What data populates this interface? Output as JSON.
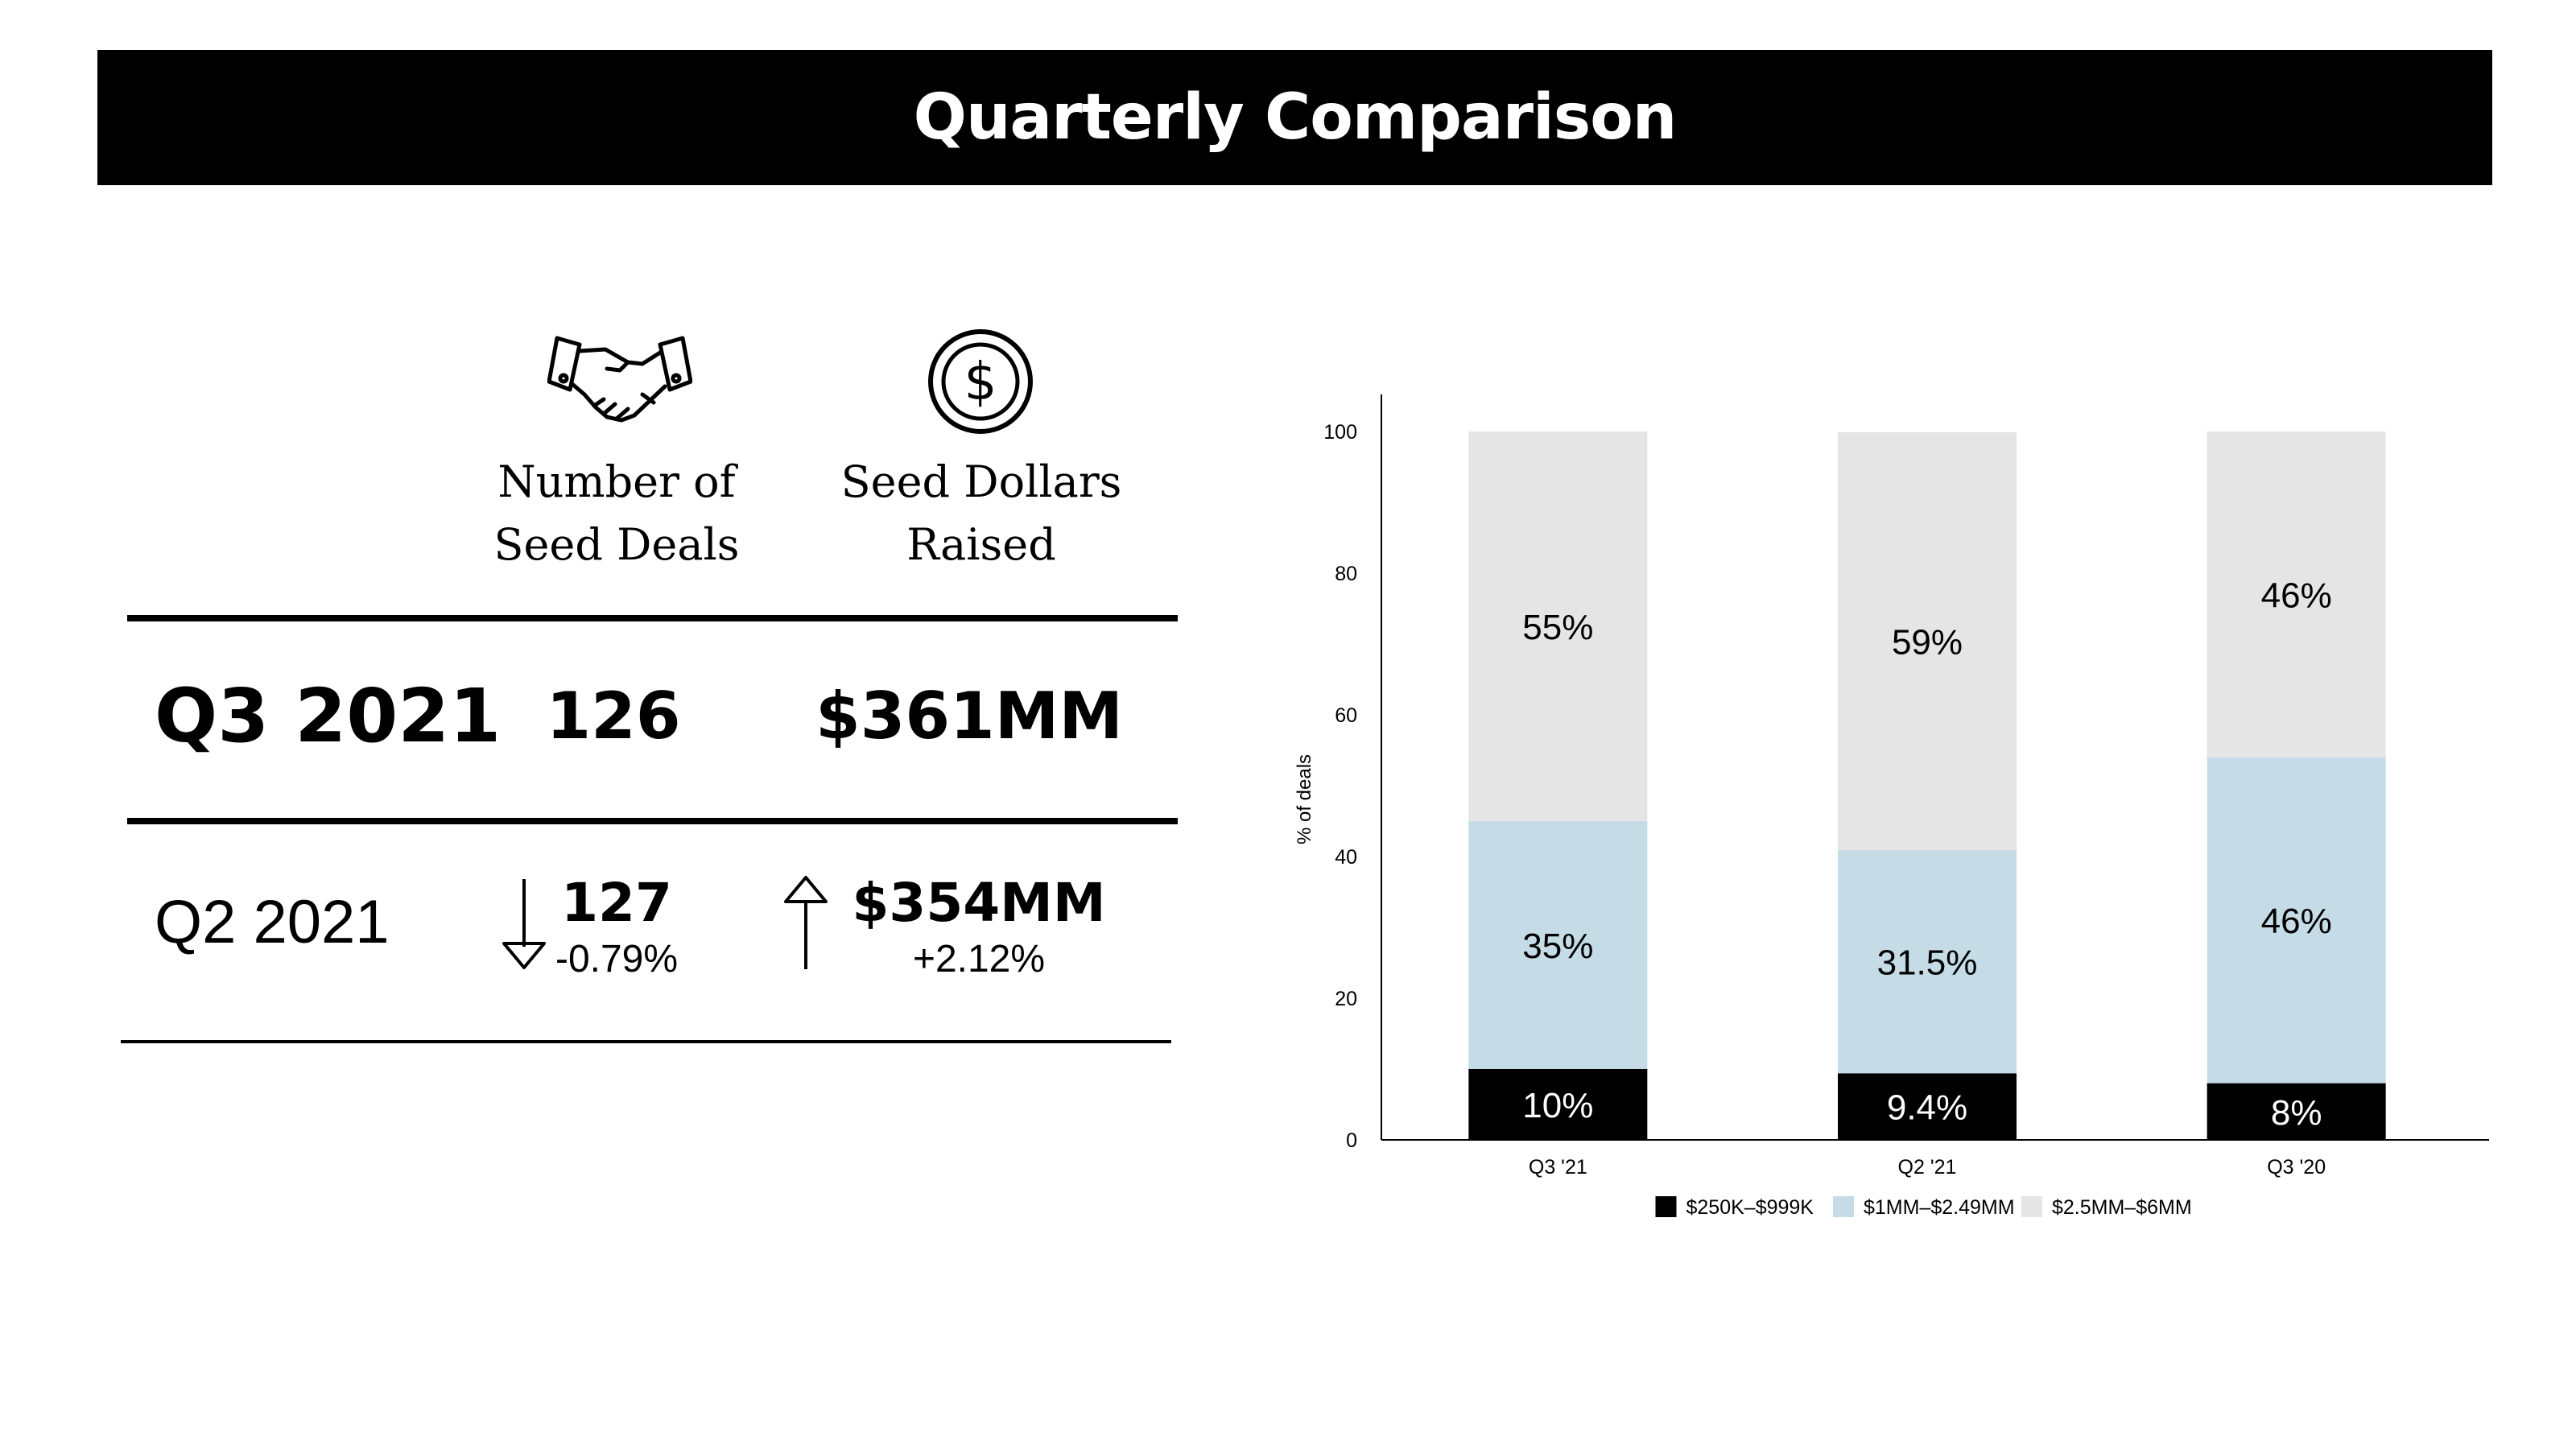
{
  "header": {
    "title": "Quarterly Comparison"
  },
  "table": {
    "col_deals": [
      "Number of",
      "Seed Deals"
    ],
    "col_dollars": [
      "Seed Dollars",
      "Raised"
    ],
    "current": {
      "period": "Q3 2021",
      "deals": "126",
      "dollars": "$361MM"
    },
    "previous": {
      "period": "Q2 2021",
      "deals": "127",
      "deals_change": "-0.79%",
      "deals_direction": "down",
      "dollars": "$354MM",
      "dollars_change": "+2.12%",
      "dollars_direction": "up"
    },
    "icons": {
      "deals": "handshake-icon",
      "dollars": "dollar-coin-icon"
    }
  },
  "chart_data": {
    "type": "bar",
    "stacked": true,
    "categories": [
      "Q3 '21",
      "Q2 '21",
      "Q3 '20"
    ],
    "series": [
      {
        "name": "$250K–$999K",
        "values": [
          10,
          9.4,
          8
        ],
        "labels": [
          "10%",
          "9.4%",
          "8%"
        ],
        "color": "#000000",
        "label_color": "#ffffff"
      },
      {
        "name": "$1MM–$2.49MM",
        "values": [
          35,
          31.5,
          46
        ],
        "labels": [
          "35%",
          "31.5%",
          "46%"
        ],
        "color": "#c5dce6",
        "label_color": "#000000"
      },
      {
        "name": "$2.5MM–$6MM",
        "values": [
          55,
          59,
          46
        ],
        "labels": [
          "55%",
          "59%",
          "46%"
        ],
        "color": "#e5e5e5",
        "label_color": "#000000"
      }
    ],
    "ylabel": "% of deals",
    "ylim": [
      0,
      100
    ],
    "yticks": [
      0,
      20,
      40,
      60,
      80,
      100
    ],
    "grid": false,
    "legend": "bottom"
  }
}
